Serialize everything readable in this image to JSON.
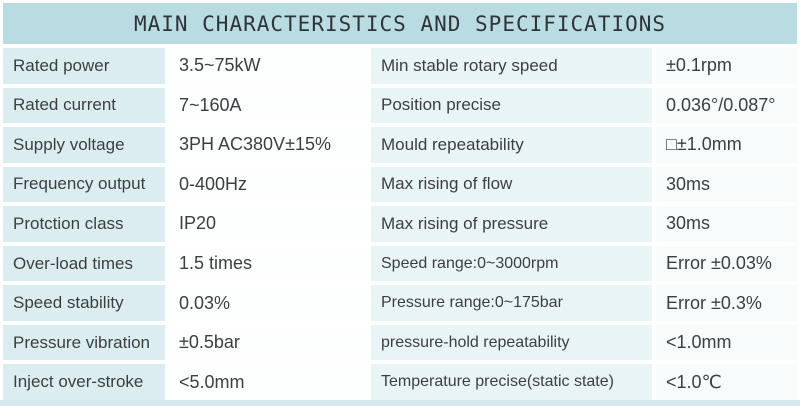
{
  "title": "MAIN CHARACTERISTICS AND SPECIFICATIONS",
  "colors": {
    "title_bg": "#b9dce2",
    "label_left_bg": "#dcedf0",
    "label_right_bg": "#e9f4f6",
    "value_left_bg": "#fdfefe",
    "value_right_bg": "#f7fbfc",
    "bottom_bar": "#d5eaed",
    "text": "#3b3f42"
  },
  "rows": [
    {
      "left_label": "Rated power",
      "left_value": "3.5~75kW",
      "right_label": "Min stable rotary speed",
      "right_value": "±0.1rpm"
    },
    {
      "left_label": "Rated current",
      "left_value": "7~160A",
      "right_label": "Position precise",
      "right_value": "0.036°/0.087°"
    },
    {
      "left_label": "Supply voltage",
      "left_value": "3PH AC380V±15%",
      "right_label": "Mould repeatability",
      "right_value": "□±1.0mm"
    },
    {
      "left_label": "Frequency output",
      "left_value": "0-400Hz",
      "right_label": "Max rising of flow",
      "right_value": "30ms"
    },
    {
      "left_label": "Protction class",
      "left_value": "IP20",
      "right_label": "Max rising of pressure",
      "right_value": "30ms"
    },
    {
      "left_label": "Over-load times",
      "left_value": "1.5 times",
      "right_label": "Speed range:0~3000rpm",
      "right_value": "Error ±0.03%"
    },
    {
      "left_label": "Speed stability",
      "left_value": "0.03%",
      "right_label": "Pressure range:0~175bar",
      "right_value": "Error ±0.3%"
    },
    {
      "left_label": "Pressure vibration",
      "left_value": "±0.5bar",
      "right_label": "pressure-hold repeatability",
      "right_value": "<1.0mm"
    },
    {
      "left_label": "Inject over-stroke",
      "left_value": "<5.0mm",
      "right_label": "Temperature precise(static state)",
      "right_value": "<1.0℃"
    }
  ]
}
